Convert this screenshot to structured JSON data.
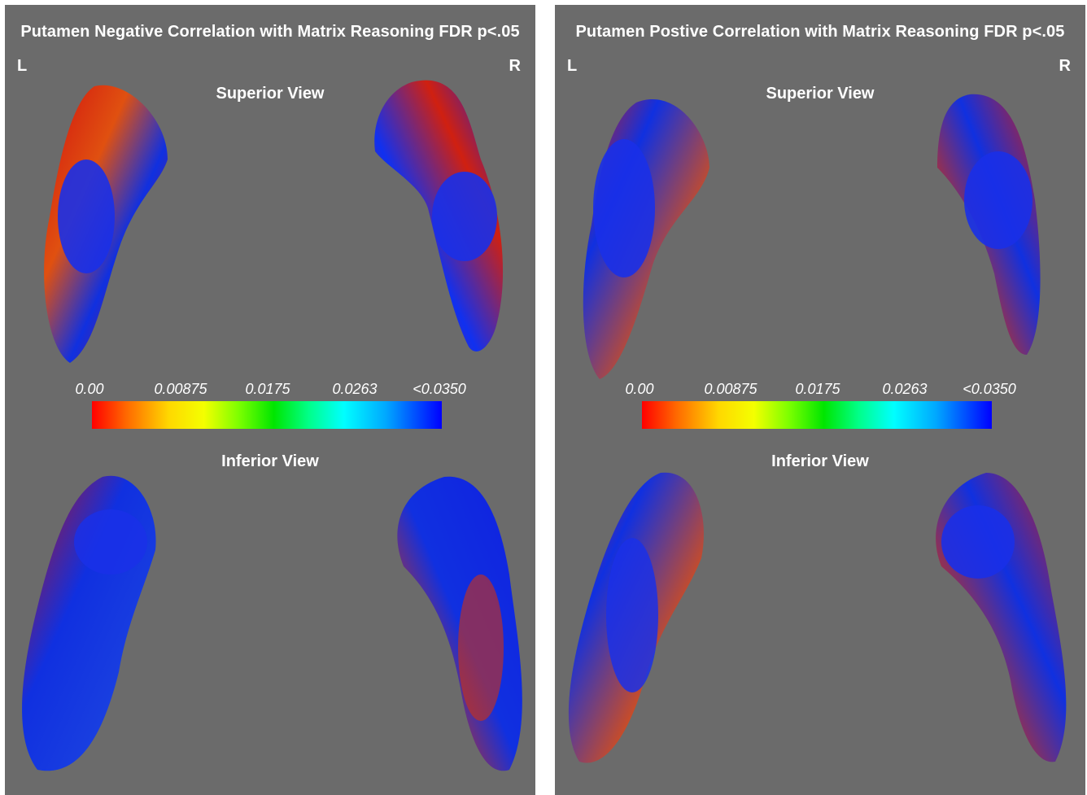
{
  "panels": [
    {
      "title": "Putamen Negative Correlation with Matrix Reasoning FDR p<.05",
      "left_label": "L",
      "right_label": "R",
      "superior_label": "Superior View",
      "inferior_label": "Inferior View",
      "scale_ticks": [
        "0.00",
        "0.00875",
        "0.0175",
        "0.0263",
        "<0.0350"
      ]
    },
    {
      "title": "Putamen Postive Correlation with Matrix Reasoning FDR p<.05",
      "left_label": "L",
      "right_label": "R",
      "superior_label": "Superior View",
      "inferior_label": "Inferior View",
      "scale_ticks": [
        "0.00",
        "0.00875",
        "0.0175",
        "0.0263",
        "<0.0350"
      ]
    }
  ],
  "colors": {
    "background": "#6b6b6b",
    "low": "#ff0000",
    "mid": "#00ff00",
    "high": "#0000ff"
  }
}
